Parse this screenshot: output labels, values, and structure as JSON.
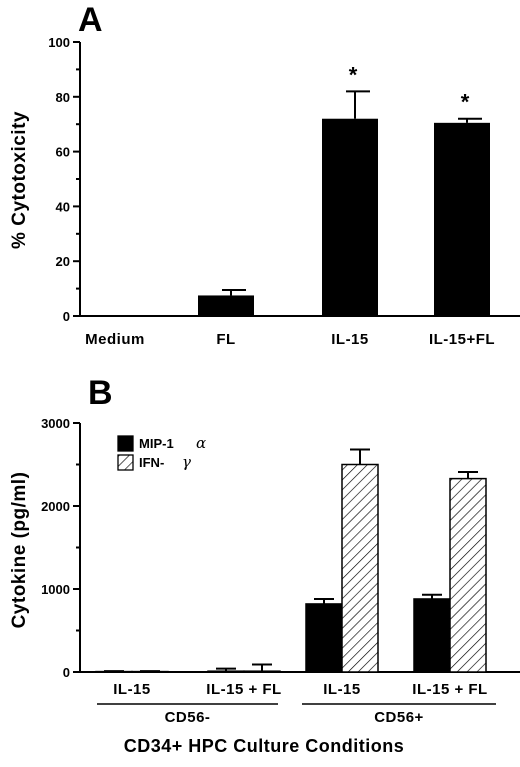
{
  "chart_data": [
    {
      "panel": "A",
      "type": "bar",
      "ylabel": "% Cytotoxicity",
      "categories": [
        "Medium",
        "FL",
        "IL-15",
        "IL-15+FL"
      ],
      "series": [
        {
          "values": [
            0,
            7.5,
            72,
            70.5
          ],
          "errors": [
            0,
            2,
            10,
            1.5
          ],
          "color": "#000000"
        }
      ],
      "significance": [
        "",
        "",
        "*",
        "*"
      ],
      "ylim": [
        0,
        100
      ],
      "yticks": [
        0,
        20,
        40,
        60,
        80,
        100
      ],
      "yticks_labels": [
        "0",
        "20",
        "40",
        "60",
        "80",
        "100"
      ],
      "grid": false
    },
    {
      "panel": "B",
      "type": "bar",
      "ylabel": "Cytokine (pg/ml)",
      "xlabel": "CD34+ HPC Culture Conditions",
      "categories": [
        "IL-15",
        "IL-15 + FL",
        "IL-15",
        "IL-15 + FL"
      ],
      "groups": [
        {
          "label": "CD56-",
          "categories": [
            0,
            1
          ]
        },
        {
          "label": "CD56+",
          "categories": [
            2,
            3
          ]
        }
      ],
      "series": [
        {
          "name": "MIP-1",
          "greek": "α",
          "fill": "solid",
          "values": [
            5,
            10,
            820,
            880
          ],
          "errors": [
            5,
            30,
            60,
            50
          ]
        },
        {
          "name": "IFN-",
          "greek": "γ",
          "fill": "hatched",
          "values": [
            5,
            10,
            2500,
            2330
          ],
          "errors": [
            5,
            80,
            180,
            80
          ]
        }
      ],
      "ylim": [
        0,
        3000
      ],
      "yticks": [
        0,
        1000,
        2000,
        3000
      ],
      "yticks_labels": [
        "0",
        "1000",
        "2000",
        "3000"
      ],
      "legend": "top-left",
      "grid": false
    }
  ]
}
